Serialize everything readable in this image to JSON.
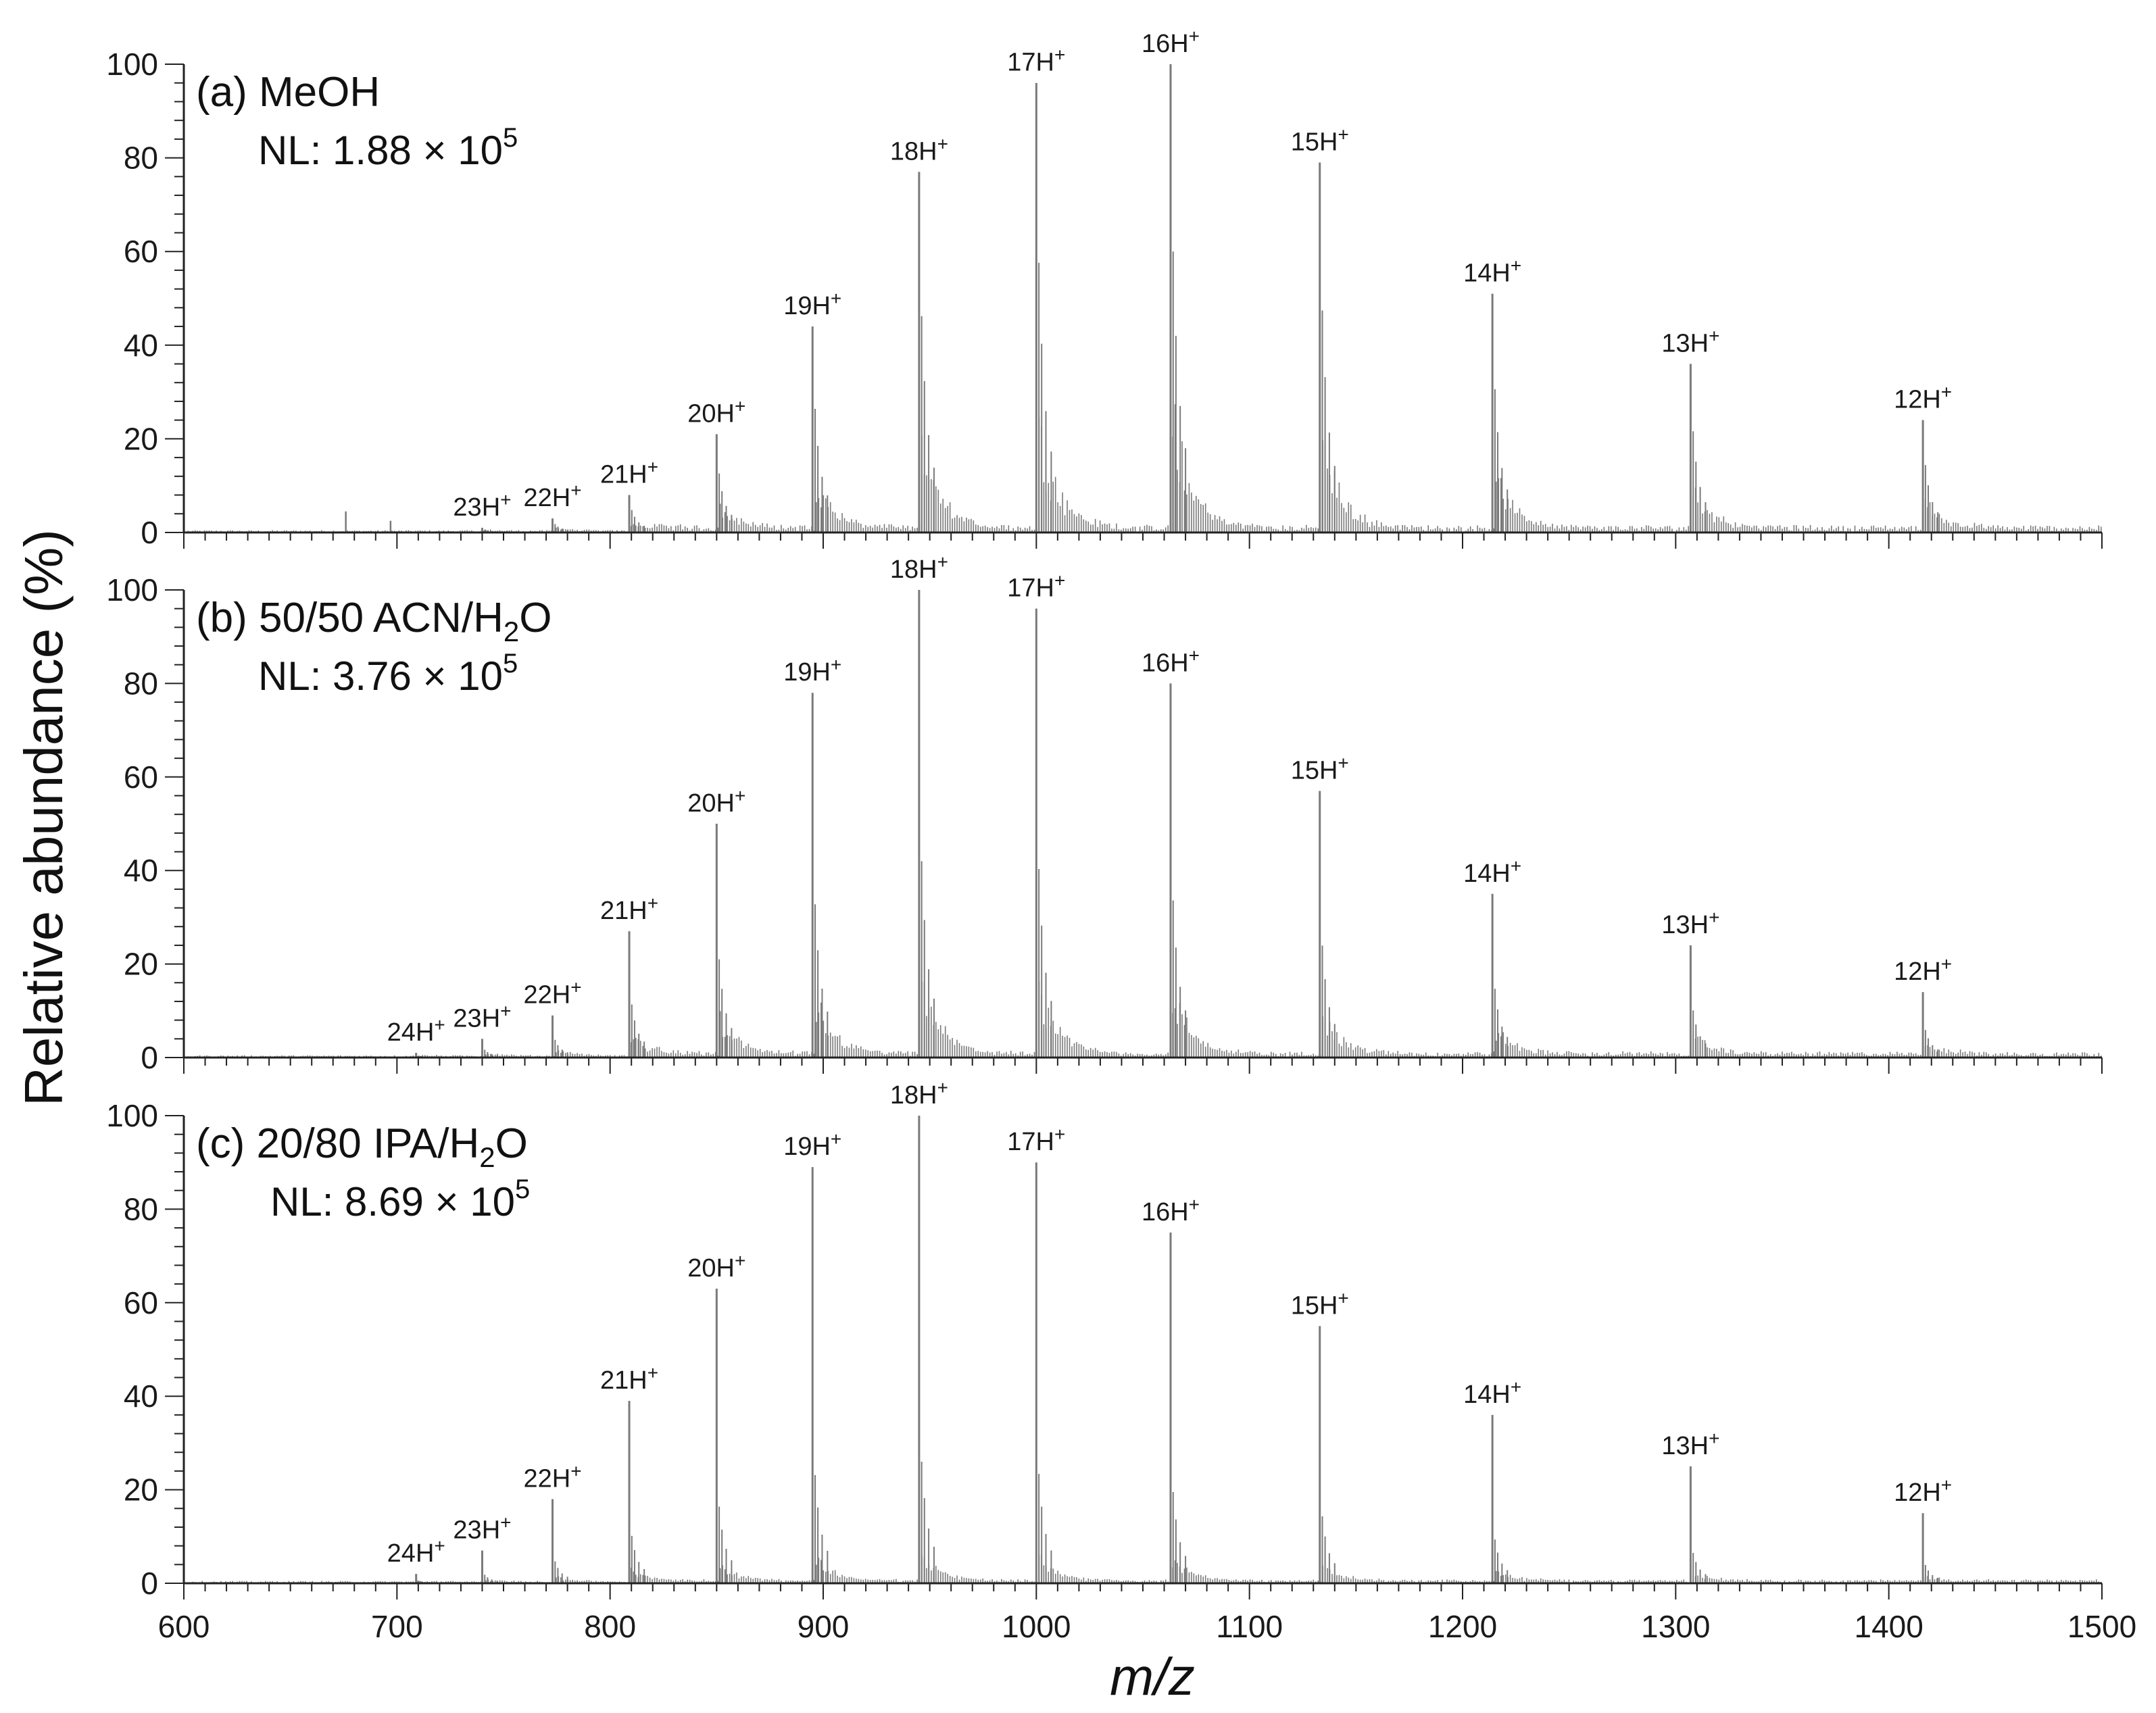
{
  "chart_data": {
    "type": "bar",
    "subtype": "mass-spectrum stick plot, three stacked panels sharing one x axis",
    "xlabel": "m/z",
    "ylabel": "Relative abundance (%)",
    "xlim": [
      600,
      1500
    ],
    "ylim": [
      0,
      100
    ],
    "x_ticks": [
      600,
      700,
      800,
      900,
      1000,
      1100,
      1200,
      1300,
      1400,
      1500
    ],
    "y_ticks": [
      0,
      20,
      40,
      60,
      80,
      100
    ],
    "grid": false,
    "colors": {
      "spectrum": "#7a7a7a",
      "axes": "#222222"
    },
    "panels": [
      {
        "label": "(a) MeOH",
        "nl_prefix": "NL: 1.88 × 10",
        "nl_exp": "5",
        "peaks": [
          {
            "charge": "23H",
            "x": 740,
            "y": 1
          },
          {
            "charge": "22H",
            "x": 773,
            "y": 3
          },
          {
            "charge": "21H",
            "x": 809,
            "y": 8
          },
          {
            "charge": "20H",
            "x": 850,
            "y": 21
          },
          {
            "charge": "19H",
            "x": 895,
            "y": 44
          },
          {
            "charge": "18H",
            "x": 945,
            "y": 77
          },
          {
            "charge": "17H",
            "x": 1000,
            "y": 96
          },
          {
            "charge": "16H",
            "x": 1063,
            "y": 100
          },
          {
            "charge": "15H",
            "x": 1133,
            "y": 79
          },
          {
            "charge": "14H",
            "x": 1214,
            "y": 51
          },
          {
            "charge": "13H",
            "x": 1307,
            "y": 36
          },
          {
            "charge": "12H",
            "x": 1416,
            "y": 24
          }
        ],
        "minor_peaks": [
          {
            "x": 676,
            "y": 4.5
          },
          {
            "x": 697,
            "y": 2.5
          }
        ]
      },
      {
        "label": "(b) 50/50 ACN/H",
        "label_sub": "2",
        "label_tail": "O",
        "nl_prefix": "NL: 3.76 × 10",
        "nl_exp": "5",
        "peaks": [
          {
            "charge": "24H",
            "x": 709,
            "y": 1
          },
          {
            "charge": "23H",
            "x": 740,
            "y": 4
          },
          {
            "charge": "22H",
            "x": 773,
            "y": 9
          },
          {
            "charge": "21H",
            "x": 809,
            "y": 27
          },
          {
            "charge": "20H",
            "x": 850,
            "y": 50
          },
          {
            "charge": "19H",
            "x": 895,
            "y": 78
          },
          {
            "charge": "18H",
            "x": 945,
            "y": 100
          },
          {
            "charge": "17H",
            "x": 1000,
            "y": 96
          },
          {
            "charge": "16H",
            "x": 1063,
            "y": 80
          },
          {
            "charge": "15H",
            "x": 1133,
            "y": 57
          },
          {
            "charge": "14H",
            "x": 1214,
            "y": 35
          },
          {
            "charge": "13H",
            "x": 1307,
            "y": 24
          },
          {
            "charge": "12H",
            "x": 1416,
            "y": 14
          }
        ],
        "minor_peaks": []
      },
      {
        "label": "(c) 20/80 IPA/H",
        "label_sub": "2",
        "label_tail": "O",
        "nl_prefix": "NL: 8.69 × 10",
        "nl_exp": "5",
        "peaks": [
          {
            "charge": "24H",
            "x": 709,
            "y": 2
          },
          {
            "charge": "23H",
            "x": 740,
            "y": 7
          },
          {
            "charge": "22H",
            "x": 773,
            "y": 18
          },
          {
            "charge": "21H",
            "x": 809,
            "y": 39
          },
          {
            "charge": "20H",
            "x": 850,
            "y": 63
          },
          {
            "charge": "19H",
            "x": 895,
            "y": 89
          },
          {
            "charge": "18H",
            "x": 945,
            "y": 100
          },
          {
            "charge": "17H",
            "x": 1000,
            "y": 90
          },
          {
            "charge": "16H",
            "x": 1063,
            "y": 75
          },
          {
            "charge": "15H",
            "x": 1133,
            "y": 55
          },
          {
            "charge": "14H",
            "x": 1214,
            "y": 36
          },
          {
            "charge": "13H",
            "x": 1307,
            "y": 25
          },
          {
            "charge": "12H",
            "x": 1416,
            "y": 15
          }
        ],
        "minor_peaks": []
      }
    ]
  }
}
